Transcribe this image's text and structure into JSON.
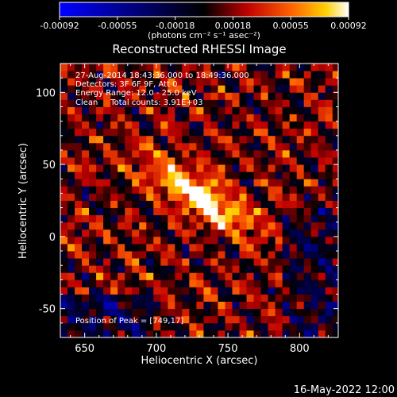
{
  "chart_data": {
    "type": "heatmap",
    "title": "Reconstructed RHESSI Image",
    "xlabel": "Heliocentric X (arcsec)",
    "ylabel": "Heliocentric Y (arcsec)",
    "xlim": [
      633,
      827
    ],
    "ylim": [
      -70,
      120
    ],
    "x_ticks": [
      650,
      700,
      750,
      800
    ],
    "y_ticks": [
      -50,
      0,
      50,
      100
    ],
    "colorbar": {
      "ticks": [
        "-0.00092",
        "-0.00055",
        "-0.00018",
        "0.00018",
        "0.00055",
        "0.00092"
      ],
      "unit_label": "(photons cm⁻² s⁻¹ asec⁻²)",
      "min": -0.00092,
      "max": 0.00092
    },
    "annotations": [
      "27-Aug-2014 18:43:36.000 to 18:49:36.000",
      "Detectors: 3F 6F 9F, Att 0",
      "Energy Range: 12.0 - 25.0 keV",
      "Clean     Total counts: 3.91E+03"
    ],
    "peak_label": "Position of Peak = [749,17]",
    "peak": [
      749,
      17
    ],
    "grid": false,
    "colormap": "blue-black-red-yellow-white"
  },
  "footer_date": "16-May-2022 12:00"
}
